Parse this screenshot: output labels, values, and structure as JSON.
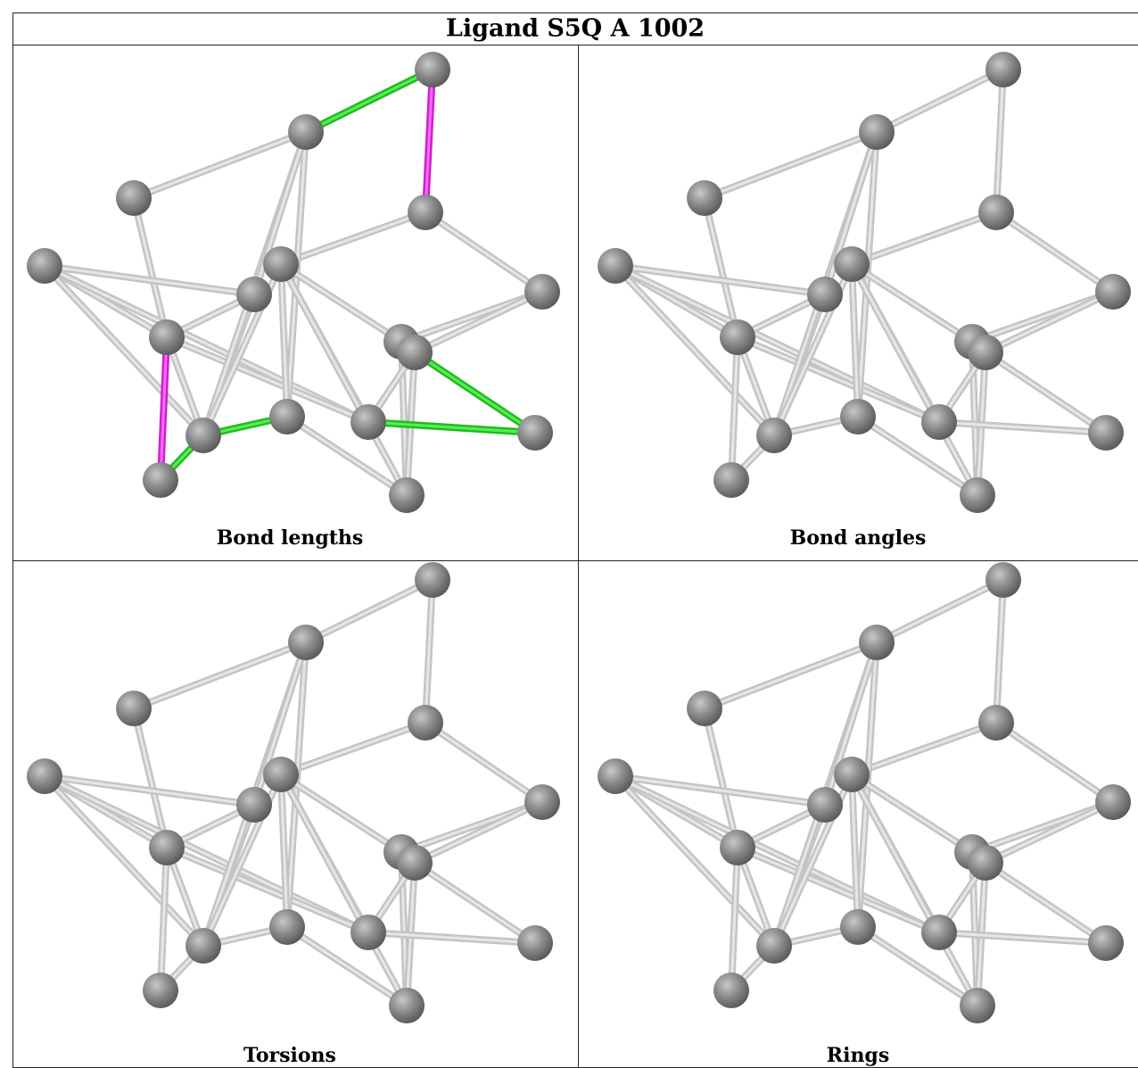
{
  "title": "Ligand S5Q A 1002",
  "panels": [
    {
      "label": "Bond lengths"
    },
    {
      "label": "Bond angles"
    },
    {
      "label": "Torsions"
    },
    {
      "label": "Rings"
    }
  ]
}
